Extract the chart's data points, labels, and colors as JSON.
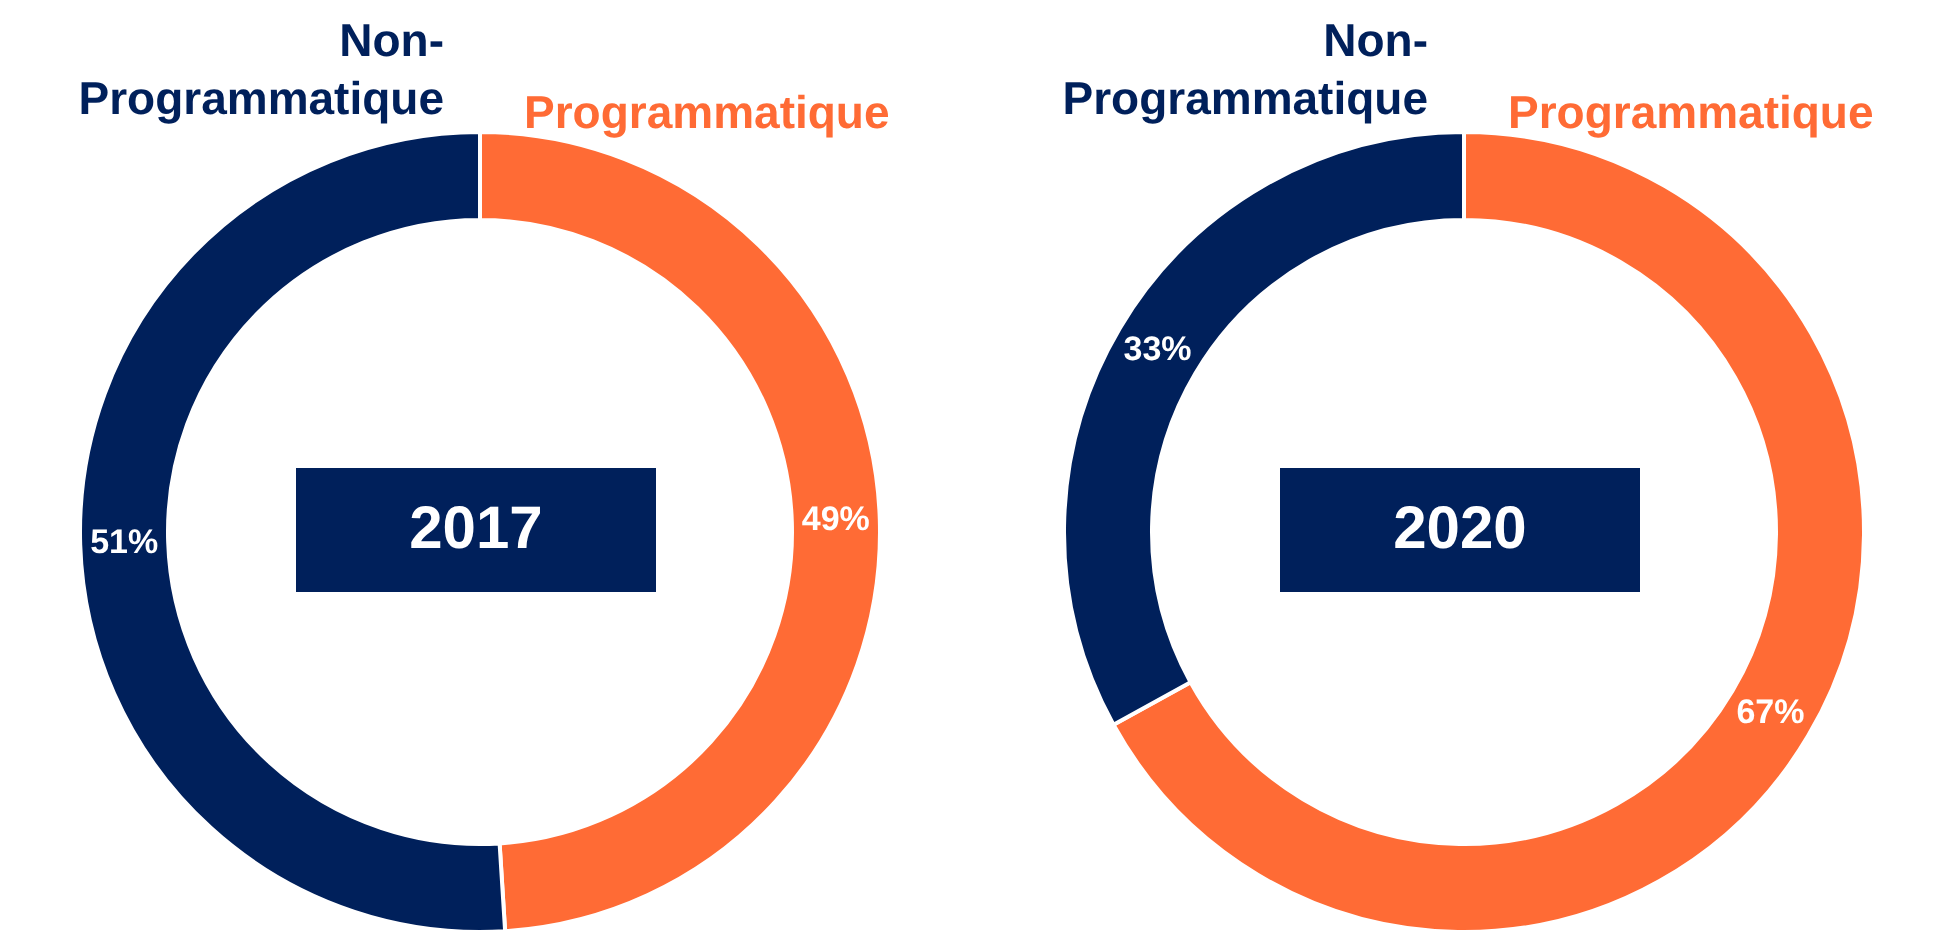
{
  "chart_data": [
    {
      "type": "donut",
      "title": "2017",
      "categories": [
        "Programmatique",
        "Non-Programmatique"
      ],
      "values": [
        49,
        51
      ],
      "colors": [
        "#ff6b35",
        "#00205b"
      ],
      "value_labels": [
        "49%",
        "51%"
      ]
    },
    {
      "type": "donut",
      "title": "2020",
      "categories": [
        "Programmatique",
        "Non-Programmatique"
      ],
      "values": [
        67,
        33
      ],
      "colors": [
        "#ff6b35",
        "#00205b"
      ],
      "value_labels": [
        "67%",
        "33%"
      ]
    }
  ]
}
